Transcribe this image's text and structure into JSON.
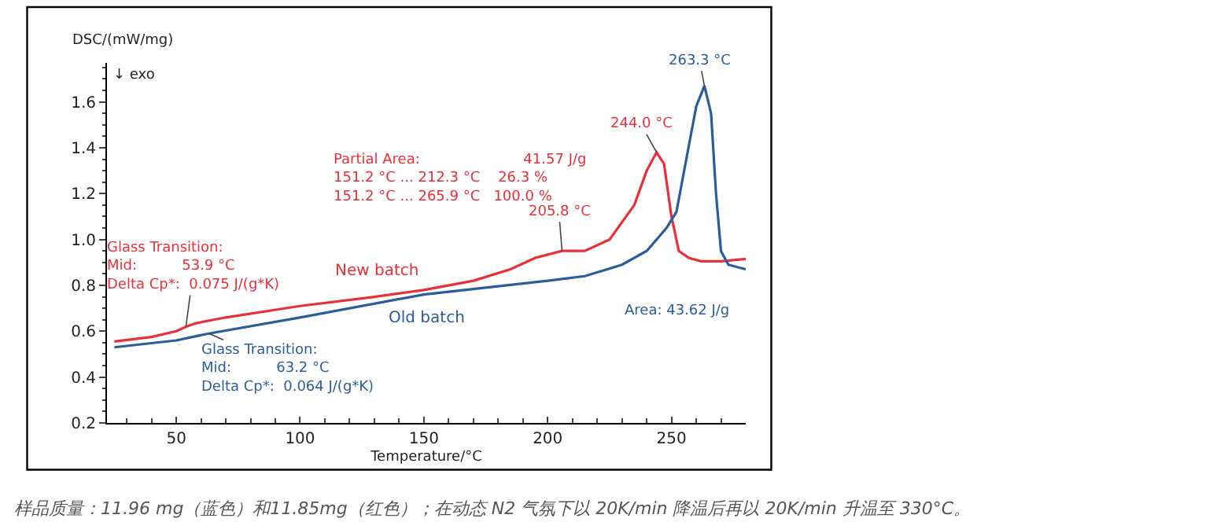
{
  "chart_data": {
    "type": "line",
    "xlabel": "Temperature/°C",
    "ylabel": "DSC/(mW/mg)",
    "x": [
      25,
      40,
      50,
      54,
      58,
      70,
      100,
      130,
      150,
      170,
      185,
      195,
      205.8,
      215,
      225,
      235,
      240,
      244,
      247,
      250,
      253,
      257,
      262,
      270,
      280
    ],
    "series": [
      {
        "name": "New batch",
        "color": "#e8303a",
        "values": [
          0.555,
          0.575,
          0.6,
          0.62,
          0.635,
          0.66,
          0.71,
          0.75,
          0.78,
          0.82,
          0.87,
          0.92,
          0.95,
          0.95,
          1.0,
          1.15,
          1.3,
          1.38,
          1.33,
          1.1,
          0.95,
          0.92,
          0.905,
          0.905,
          0.915
        ]
      },
      {
        "name": "Old batch",
        "color": "#2a5d9a",
        "x": [
          25,
          50,
          63.2,
          100,
          150,
          200,
          215,
          230,
          240,
          248,
          252,
          256,
          260,
          263.3,
          266,
          268,
          270,
          273,
          280
        ],
        "values": [
          0.53,
          0.56,
          0.59,
          0.66,
          0.76,
          0.82,
          0.84,
          0.89,
          0.95,
          1.05,
          1.12,
          1.35,
          1.58,
          1.67,
          1.55,
          1.2,
          0.95,
          0.89,
          0.87
        ]
      }
    ],
    "xlim": [
      22,
      280
    ],
    "ylim": [
      0.2,
      1.77
    ],
    "xticks": [
      50,
      100,
      150,
      200,
      250
    ],
    "yticks": [
      0.2,
      0.4,
      0.6,
      0.8,
      {
        "value": 1.0,
        "label": "1.0"
      },
      1.2,
      1.4,
      1.6
    ],
    "legend": false,
    "marker": "none",
    "line_style": "solid",
    "annotations": [
      {
        "text": "Glass Transition:\nMid:          53.9 °C\nDelta Cp*:  0.075 J/(g*K)",
        "x": 53.9,
        "y": 0.62
      },
      {
        "text": "Glass Transition:\nMid:          63.2 °C\nDelta Cp*:  0.064 J/(g*K)",
        "x": 63.2,
        "y": 0.59
      },
      {
        "text": "205.8 °C",
        "x": 205.8,
        "y": 0.95
      },
      {
        "text": "244.0 °C",
        "x": 244,
        "y": 1.38
      },
      {
        "text": "263.3 °C",
        "x": 263.3,
        "y": 1.67
      },
      "↓ exo",
      "Partial Area:                       41.57 J/g\n151.2 °C ... 212.3 °C    26.3 %\n151.2 °C ... 265.9 °C   100.0 %",
      "Area: 43.62 J/g",
      "样品质量：11.96 mg（蓝色）和11.85mg（红色）；在动态 N2 气氛下以 20K/min 降温后再以 20K/min 升温至 330°C。"
    ]
  }
}
